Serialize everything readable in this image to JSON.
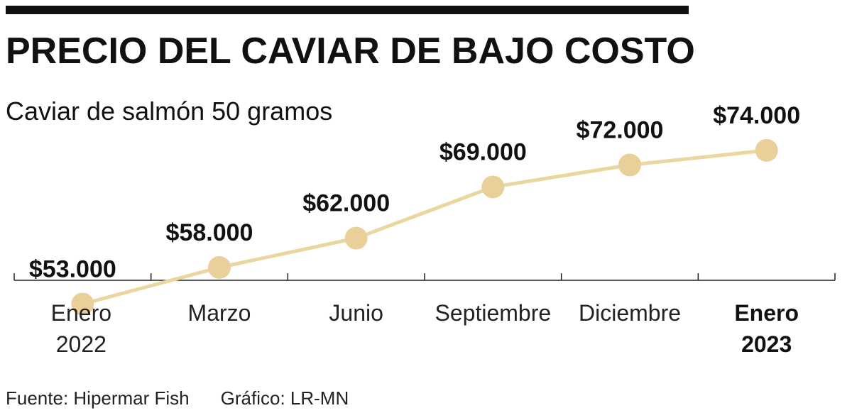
{
  "header": {
    "title": "PRECIO DEL CAVIAR DE BAJO COSTO",
    "subtitle": "Caviar de salmón 50 gramos"
  },
  "footer": {
    "source": "Fuente: Hipermar Fish",
    "credit": "Gráfico: LR-MN"
  },
  "chart_data": {
    "type": "line",
    "title": "PRECIO DEL CAVIAR DE BAJO COSTO",
    "subtitle": "Caviar de salmón 50 gramos",
    "categories": [
      [
        "Enero",
        "2022"
      ],
      [
        "Marzo"
      ],
      [
        "Junio"
      ],
      [
        "Septiembre"
      ],
      [
        "Diciembre"
      ],
      [
        "Enero",
        "2023"
      ]
    ],
    "emphasized_category": 5,
    "values": [
      53000,
      58000,
      62000,
      69000,
      72000,
      74000
    ],
    "value_labels": [
      "$53.000",
      "$58.000",
      "$62.000",
      "$69.000",
      "$72.000",
      "$74.000"
    ],
    "ylim": [
      48000,
      80000
    ],
    "grid": false,
    "legend": "none",
    "colors": {
      "line": "#ecd6a0",
      "marker": "#e9d09a",
      "axis": "#222222"
    }
  }
}
